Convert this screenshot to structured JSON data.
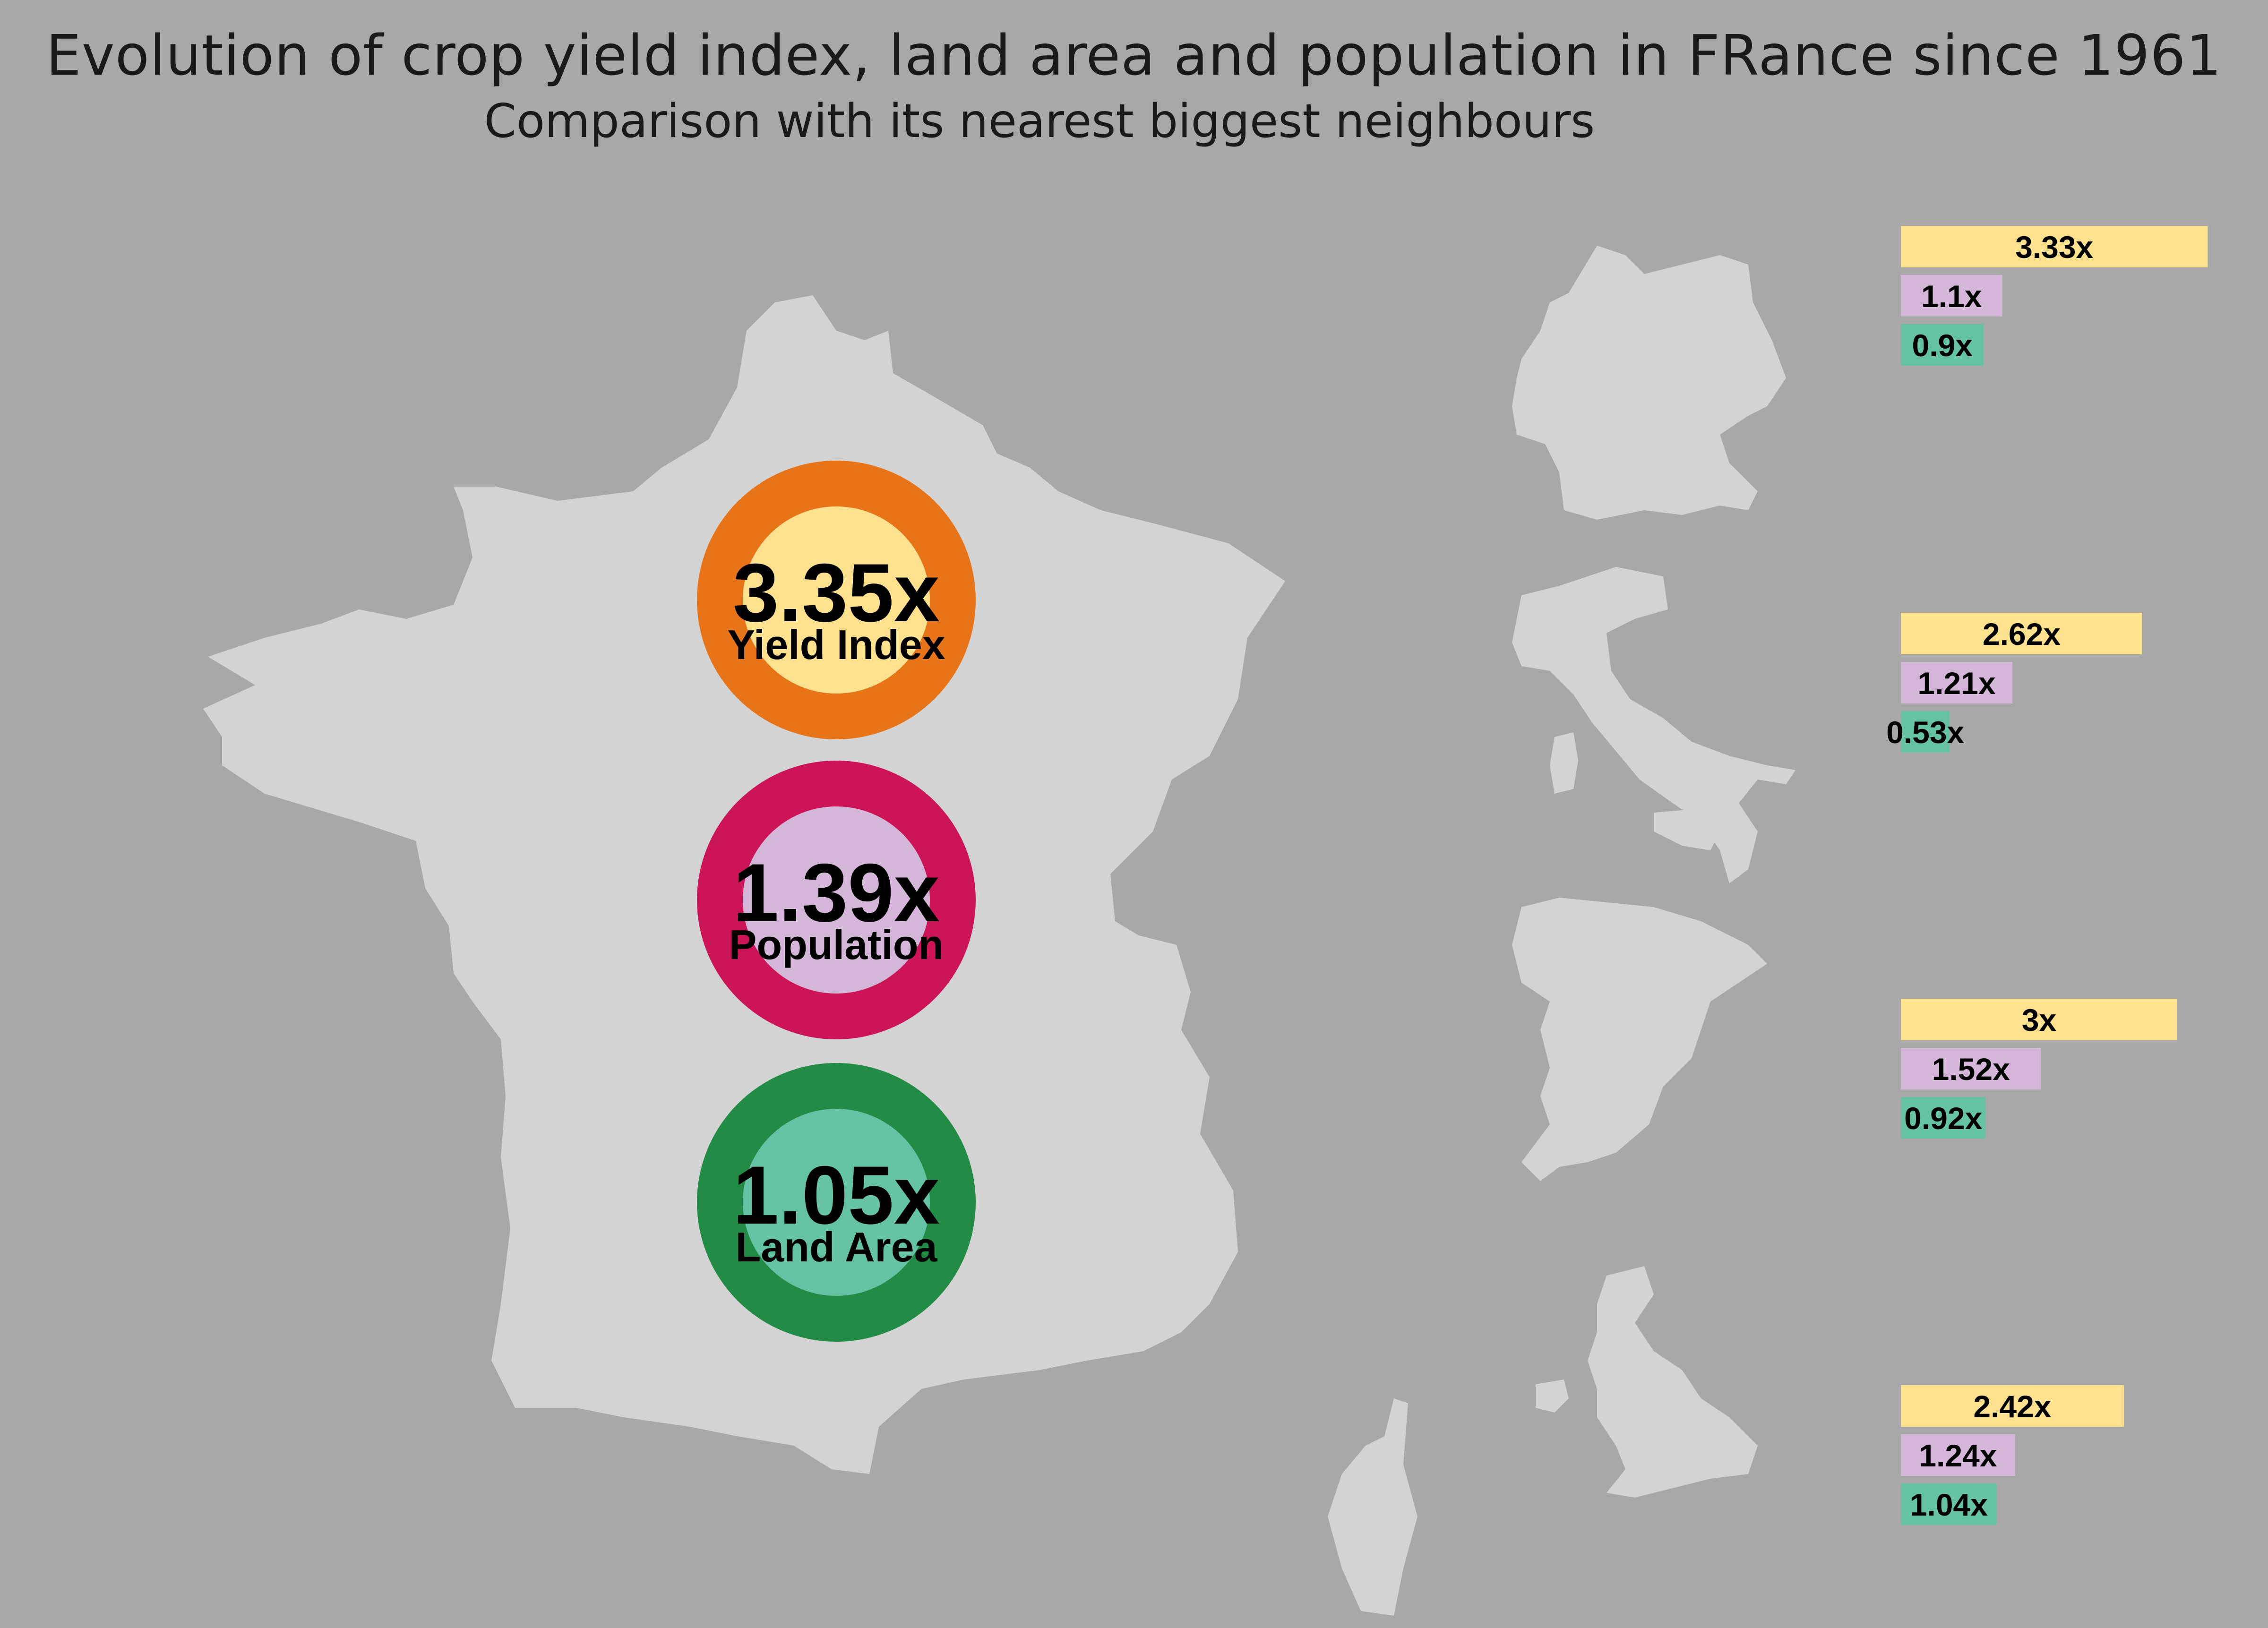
{
  "title": "Evolution of crop yield index, land area and population in FRance since 1961",
  "subtitle": "Comparison with its nearest biggest neighbours",
  "colors": {
    "background": "#a8a8a8",
    "land": "#d3d3d3",
    "yield_outer": "#e8741a",
    "yield_inner": "#fde18f",
    "population_outer": "#cc1458",
    "population_inner": "#d4b7d8",
    "area_outer": "#228b45",
    "area_inner": "#66c2a5"
  },
  "chart_data": [
    {
      "type": "table",
      "country": "France",
      "metrics": [
        {
          "key": "yield",
          "value": 3.35,
          "value_label": "3.35x",
          "label": "Yield Index"
        },
        {
          "key": "population",
          "value": 1.39,
          "value_label": "1.39x",
          "label": "Population"
        },
        {
          "key": "area",
          "value": 1.05,
          "value_label": "1.05x",
          "label": "Land Area"
        }
      ]
    },
    {
      "type": "bar",
      "orientation": "horizontal",
      "categories": [
        "Germany",
        "Italy",
        "Spain",
        "United Kingdom"
      ],
      "series": [
        {
          "key": "yield",
          "values": [
            3.33,
            2.62,
            3,
            2.42
          ],
          "labels": [
            "3.33x",
            "2.62x",
            "3x",
            "2.42x"
          ]
        },
        {
          "key": "population",
          "values": [
            1.1,
            1.21,
            1.52,
            1.24
          ],
          "labels": [
            "1.1x",
            "1.21x",
            "1.52x",
            "1.24x"
          ]
        },
        {
          "key": "area",
          "values": [
            0.9,
            0.53,
            0.92,
            1.04
          ],
          "labels": [
            "0.9x",
            "0.53x",
            "0.92x",
            "1.04x"
          ]
        }
      ]
    }
  ]
}
